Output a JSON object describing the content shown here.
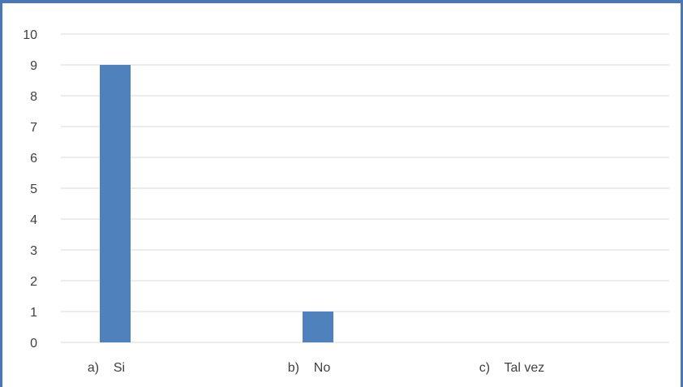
{
  "chart_data": {
    "type": "bar",
    "categories": [
      "a)    Si",
      "b)    No",
      "c)    Tal vez"
    ],
    "values": [
      9,
      1,
      0
    ],
    "title": "",
    "xlabel": "",
    "ylabel": "",
    "ylim": [
      0,
      10
    ],
    "yticks": [
      0,
      1,
      2,
      3,
      4,
      5,
      6,
      7,
      8,
      9,
      10
    ],
    "grid": true,
    "legend": "none",
    "colors": {
      "bar": "#4f81bd",
      "grid": "#d9d9d9",
      "frame": "#4a78b5",
      "text": "#404040"
    }
  }
}
